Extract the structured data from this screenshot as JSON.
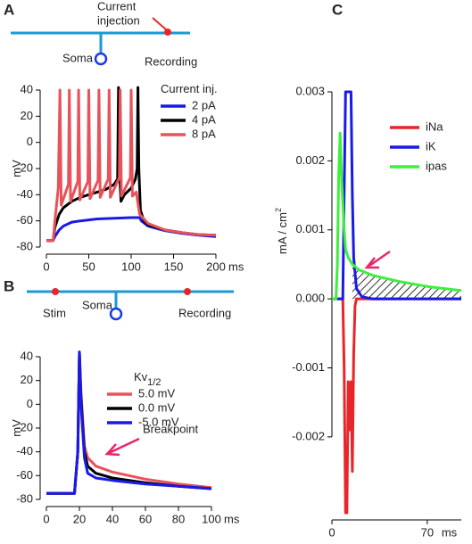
{
  "chart_data": [
    {
      "panel": "A",
      "type": "line",
      "schematic": {
        "injection": [
          "Current",
          "injection"
        ],
        "soma": "Soma",
        "recording": "Recording"
      },
      "ylabel": "mV",
      "x_unit": "ms",
      "legend_title": "Current inj.",
      "xlim": [
        0,
        200
      ],
      "ylim": [
        -80,
        40
      ],
      "xticks": [
        0,
        50,
        100,
        150,
        200
      ],
      "yticks": [
        -80,
        -60,
        -40,
        -20,
        0,
        20,
        40
      ],
      "series": [
        {
          "name": "2 pA",
          "color": "#1a1ae6",
          "x": [
            0,
            8,
            10,
            15,
            20,
            30,
            40,
            60,
            80,
            100,
            110,
            112,
            120,
            140,
            160,
            180,
            200
          ],
          "values": [
            -75,
            -75,
            -72,
            -67,
            -64,
            -61,
            -60,
            -58.5,
            -58,
            -57.5,
            -57.5,
            -60,
            -64,
            -67.5,
            -69.5,
            -71,
            -72
          ]
        },
        {
          "name": "4 pA",
          "color": "#000000",
          "x": [
            0,
            8,
            10,
            15,
            20,
            30,
            40,
            50,
            60,
            70,
            80,
            84,
            85,
            86,
            88,
            92,
            100,
            105,
            107,
            108,
            109,
            111,
            115,
            120,
            140,
            160,
            180,
            200
          ],
          "values": [
            -75,
            -75,
            -65,
            -55,
            -50,
            -45,
            -42,
            -40,
            -38,
            -36,
            -32,
            -28,
            42,
            -20,
            -45,
            -40,
            -35,
            -28,
            -20,
            42,
            -20,
            -52,
            -60,
            -63,
            -67,
            -69,
            -70.5,
            -71
          ]
        },
        {
          "name": "8 pA",
          "color": "#e8525a",
          "x": [
            0,
            8,
            10,
            14,
            16,
            17.5,
            26,
            27,
            28.5,
            37,
            38,
            39.5,
            49,
            50,
            51.5,
            61,
            62,
            63.5,
            73,
            74,
            75.5,
            86,
            87,
            88.5,
            99,
            100,
            101.5,
            106,
            110,
            120,
            140,
            160,
            180,
            200
          ],
          "values": [
            -75,
            -75,
            -60,
            -35,
            40,
            -48,
            -32,
            40,
            -45,
            -30,
            40,
            -44,
            -30,
            40,
            -43,
            -29,
            40,
            -42,
            -28,
            40,
            -42,
            -27,
            40,
            -41,
            -27,
            40,
            -41,
            -38,
            -55,
            -62,
            -67,
            -69,
            -70.5,
            -71
          ]
        }
      ]
    },
    {
      "panel": "B",
      "type": "line",
      "schematic": {
        "stim": "Stim",
        "soma": "Soma",
        "recording": "Recording"
      },
      "annotation": "Breakpoint",
      "ylabel": "mV",
      "x_unit": "ms",
      "legend_title": "Kv",
      "legend_title_sub": "1/2",
      "xlim": [
        0,
        100
      ],
      "ylim": [
        -80,
        40
      ],
      "xticks": [
        0,
        20,
        40,
        60,
        80,
        100
      ],
      "yticks": [
        -80,
        -60,
        -40,
        -20,
        0,
        20,
        40
      ],
      "series": [
        {
          "name": "5.0 mV",
          "color": "#e8525a",
          "x": [
            0,
            17,
            19,
            20,
            21,
            23,
            25,
            30,
            40,
            60,
            80,
            100
          ],
          "values": [
            -75,
            -75,
            -40,
            44,
            10,
            -35,
            -45,
            -52,
            -57,
            -63,
            -67,
            -70
          ]
        },
        {
          "name": "0.0 mV",
          "color": "#000000",
          "x": [
            0,
            17,
            19,
            20,
            21,
            23,
            25,
            30,
            40,
            60,
            80,
            100
          ],
          "values": [
            -75,
            -75,
            -40,
            44,
            5,
            -40,
            -52,
            -58,
            -62,
            -66,
            -69,
            -71
          ]
        },
        {
          "name": "-5.0 mV",
          "color": "#1a1ae6",
          "x": [
            0,
            17,
            19,
            20,
            21,
            23,
            25,
            30,
            40,
            60,
            80,
            100
          ],
          "values": [
            -75,
            -75,
            -40,
            44,
            0,
            -45,
            -58,
            -62,
            -64,
            -67,
            -69,
            -71
          ]
        }
      ]
    },
    {
      "panel": "C",
      "type": "line",
      "ylabel": "mA / cm",
      "ylabel_sup": "2",
      "x_unit": "ms",
      "xlim": [
        0,
        95
      ],
      "ylim": [
        -0.0031,
        0.003
      ],
      "xticks": [
        0,
        70
      ],
      "yticks": [
        -0.002,
        -0.001,
        {
          "value": 0,
          "label": "0.000"
        },
        0.001,
        0.002,
        0.003
      ],
      "series": [
        {
          "name": "iNa",
          "color": "#e8262a",
          "x": [
            0,
            8,
            9,
            10,
            11,
            12,
            13,
            14,
            15,
            16,
            17,
            18,
            95
          ],
          "values": [
            0,
            0,
            -0.001,
            -0.0031,
            -0.0031,
            -0.0012,
            -0.0019,
            -0.0012,
            -0.0025,
            -0.0008,
            -0.0001,
            0,
            0
          ]
        },
        {
          "name": "iK",
          "color": "#1a1ae6",
          "x": [
            0,
            8,
            9,
            10,
            14,
            15,
            16,
            18,
            22,
            30,
            95
          ],
          "values": [
            0,
            0,
            0.0015,
            0.003,
            0.003,
            0.0015,
            0.0006,
            0.00015,
            3e-05,
            0,
            0
          ]
        },
        {
          "name": "ipas",
          "color": "#3cf03c",
          "x": [
            0,
            3,
            4,
            5,
            6,
            7,
            8,
            9,
            10,
            12,
            15,
            20,
            30,
            50,
            70,
            95
          ],
          "values": [
            0,
            0,
            0.0005,
            0.0018,
            0.0024,
            0.0018,
            0.0014,
            0.001,
            0.00072,
            0.0006,
            0.0005,
            0.00042,
            0.00034,
            0.00025,
            0.00018,
            0.00012
          ]
        }
      ]
    }
  ]
}
